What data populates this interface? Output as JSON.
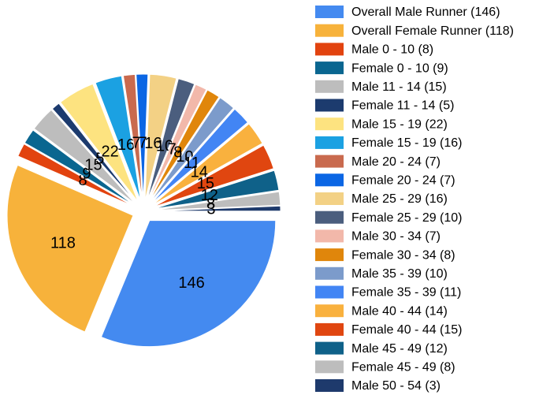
{
  "chart_data": {
    "type": "pie",
    "categories": [
      "Overall Male Runner (146)",
      "Overall Female Runner (118)",
      "Male 0 - 10 (8)",
      "Female 0 - 10 (9)",
      "Male 11 - 14 (15)",
      "Female 11 - 14 (5)",
      "Male 15 - 19 (22)",
      "Female 15 - 19 (16)",
      "Male 20 - 24 (7)",
      "Female 20 - 24 (7)",
      "Male 25 - 29 (16)",
      "Female 25 - 29 (10)",
      "Male 30 - 34 (7)",
      "Female 30 - 34 (8)",
      "Male 35 - 39 (10)",
      "Female 35 - 39 (11)",
      "Male 40 - 44 (14)",
      "Female 40 - 44 (15)",
      "Male 45 - 49 (12)",
      "Female 45 - 49 (8)",
      "Male 50 - 54 (3)"
    ],
    "values": [
      146,
      118,
      8,
      9,
      15,
      5,
      22,
      16,
      7,
      7,
      16,
      10,
      7,
      8,
      10,
      11,
      14,
      15,
      12,
      8,
      3
    ],
    "colors": [
      "#448af0",
      "#f7b23b",
      "#e2430f",
      "#0a6690",
      "#bdbdbd",
      "#1c3b6e",
      "#fde380",
      "#1ba1e2",
      "#c96a4e",
      "#0b66e4",
      "#f3d185",
      "#4b5e7e",
      "#f2b8aa",
      "#e0860b",
      "#7c9bcb",
      "#4285f4",
      "#f9b13e",
      "#e04610",
      "#0f6189",
      "#bdbdbd",
      "#1e3a6c"
    ],
    "legend": "right"
  }
}
